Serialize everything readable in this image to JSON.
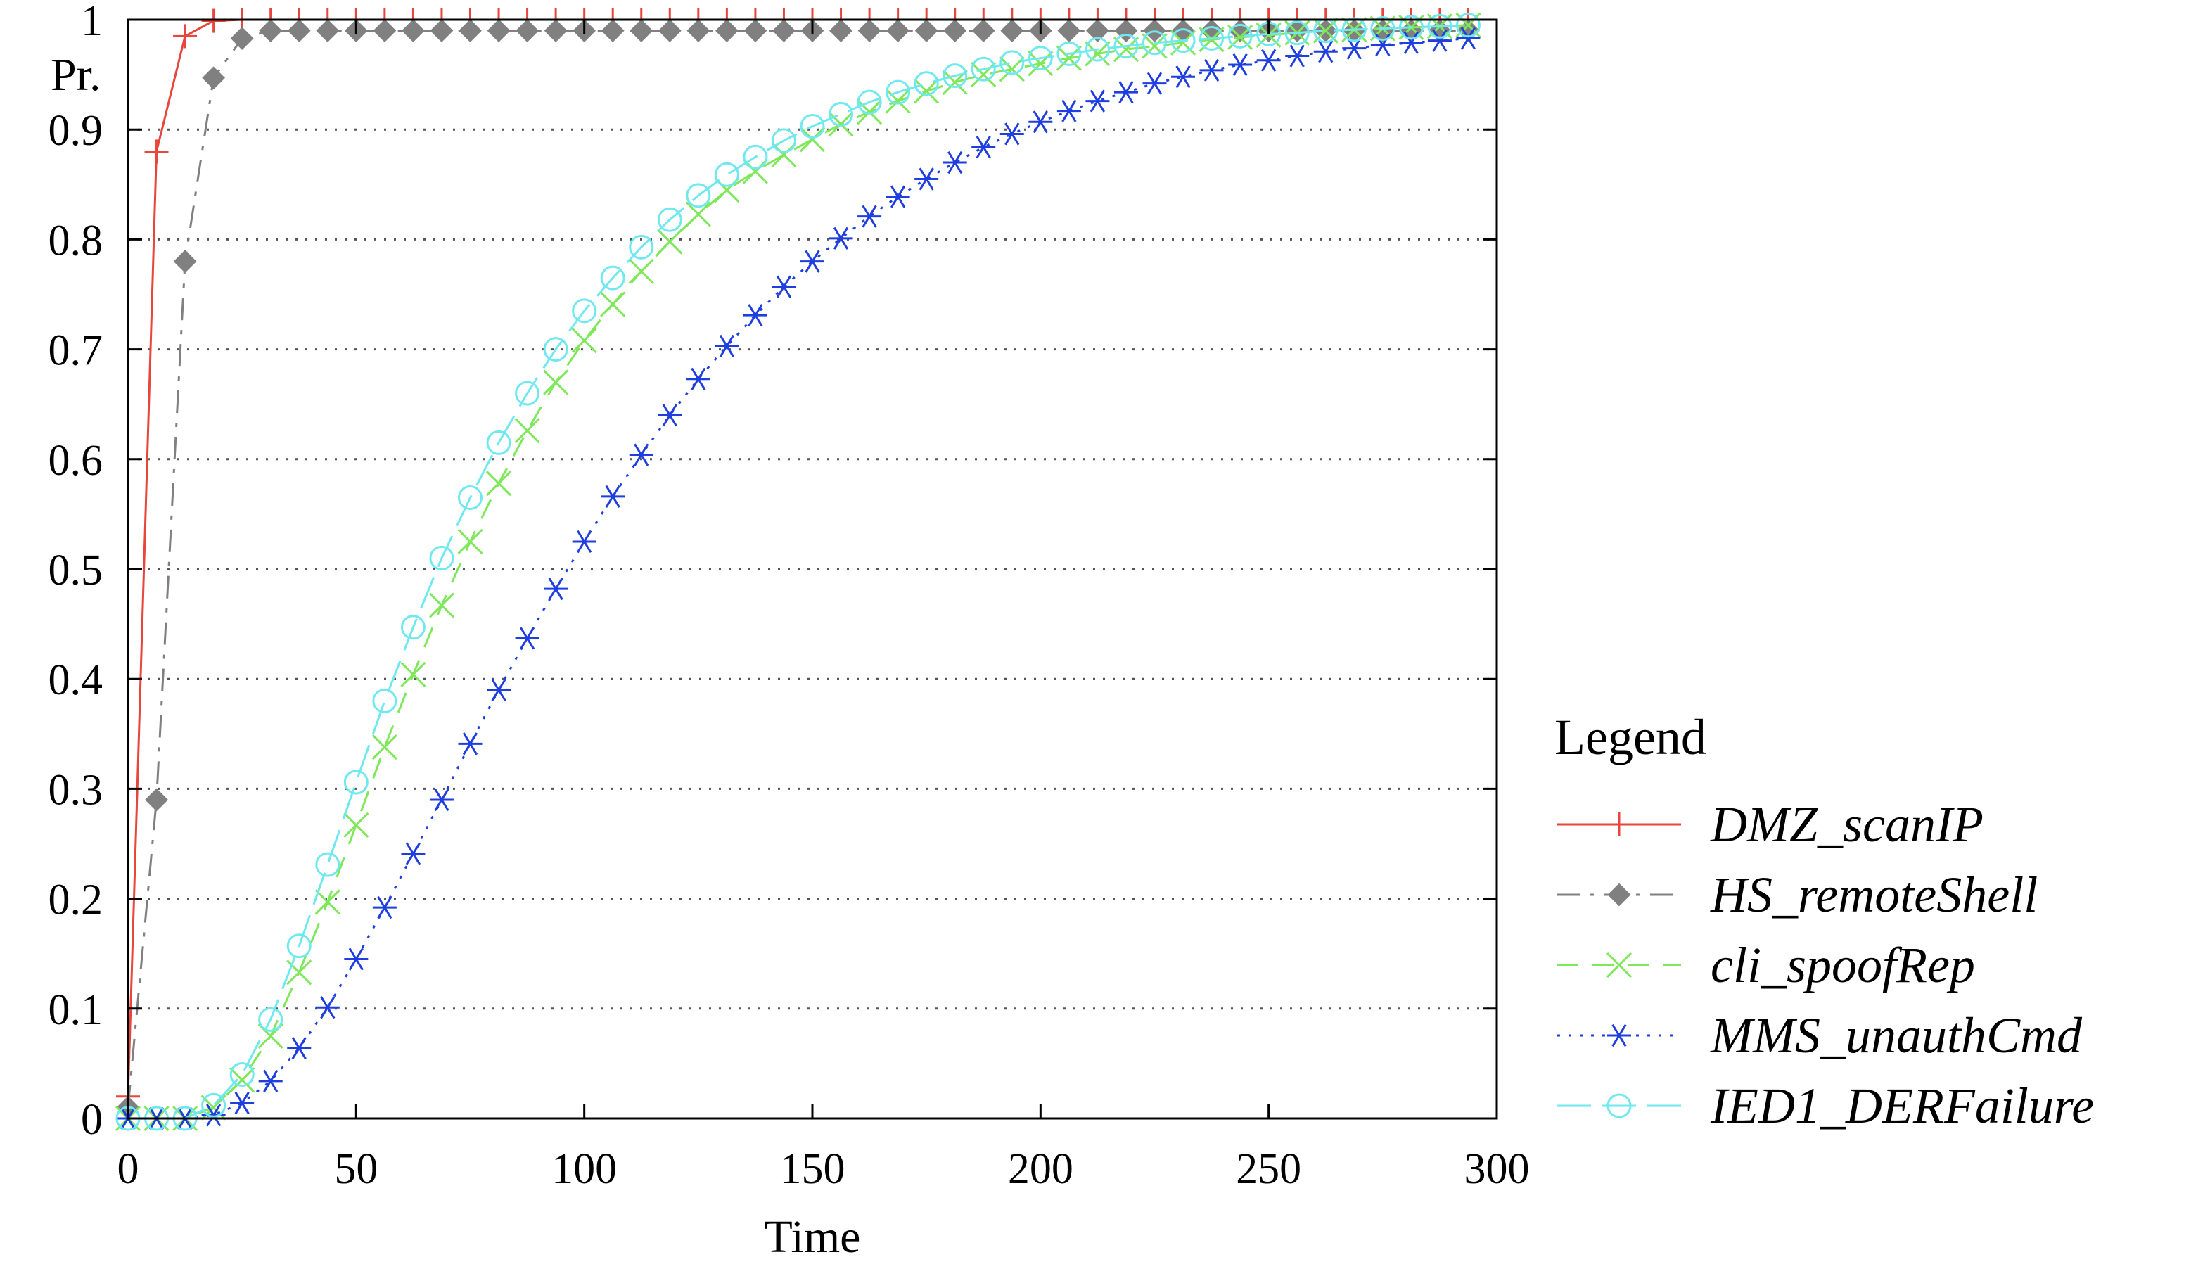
{
  "chart_data": {
    "type": "line",
    "title": "",
    "xlabel": "Time",
    "ylabel": "Pr.",
    "xlim": [
      0,
      300
    ],
    "ylim": [
      0,
      1
    ],
    "xticks": [
      "0",
      "50",
      "100",
      "150",
      "200",
      "250",
      "300"
    ],
    "yticks": [
      "0",
      "0.1",
      "0.2",
      "0.3",
      "0.4",
      "0.5",
      "0.6",
      "0.7",
      "0.8",
      "0.9",
      "1"
    ],
    "grid": true,
    "legend_title": "Legend",
    "legend_position": "right",
    "series": [
      {
        "name": "DMZ_scanIP",
        "color": "#e8453c",
        "marker": "plus",
        "dash": "solid",
        "points": [
          [
            0,
            0.02
          ],
          [
            6.25,
            0.88
          ],
          [
            12.5,
            0.985
          ],
          [
            18.75,
            0.999
          ],
          [
            25,
            1
          ],
          [
            31.25,
            1
          ],
          [
            37.5,
            1
          ],
          [
            43.75,
            1
          ],
          [
            50,
            1
          ],
          [
            56.25,
            1
          ],
          [
            62.5,
            1
          ],
          [
            68.75,
            1
          ],
          [
            75,
            1
          ],
          [
            81.25,
            1
          ],
          [
            87.5,
            1
          ],
          [
            93.75,
            1
          ],
          [
            100,
            1
          ],
          [
            106.25,
            1
          ],
          [
            112.5,
            1
          ],
          [
            118.75,
            1
          ],
          [
            125,
            1
          ],
          [
            131.25,
            1
          ],
          [
            137.5,
            1
          ],
          [
            143.75,
            1
          ],
          [
            150,
            1
          ],
          [
            156.25,
            1
          ],
          [
            162.5,
            1
          ],
          [
            168.75,
            1
          ],
          [
            175,
            1
          ],
          [
            181.25,
            1
          ],
          [
            187.5,
            1
          ],
          [
            193.75,
            1
          ],
          [
            200,
            1
          ],
          [
            206.25,
            1
          ],
          [
            212.5,
            1
          ],
          [
            218.75,
            1
          ],
          [
            225,
            1
          ],
          [
            231.25,
            1
          ],
          [
            237.5,
            1
          ],
          [
            243.75,
            1
          ],
          [
            250,
            1
          ],
          [
            256.25,
            1
          ],
          [
            262.5,
            1
          ],
          [
            268.75,
            1
          ],
          [
            275,
            1
          ],
          [
            281.25,
            1
          ],
          [
            287.5,
            1
          ],
          [
            293.75,
            1
          ]
        ]
      },
      {
        "name": "HS_remoteShell",
        "color": "#808080",
        "marker": "diamond",
        "dash": "dashdot",
        "points": [
          [
            0,
            0.01
          ],
          [
            6.25,
            0.29
          ],
          [
            12.5,
            0.78
          ],
          [
            18.75,
            0.947
          ],
          [
            25,
            0.983
          ],
          [
            31.25,
            0.99
          ],
          [
            37.5,
            0.99
          ],
          [
            43.75,
            0.99
          ],
          [
            50,
            0.99
          ],
          [
            56.25,
            0.99
          ],
          [
            62.5,
            0.99
          ],
          [
            68.75,
            0.99
          ],
          [
            75,
            0.99
          ],
          [
            81.25,
            0.99
          ],
          [
            87.5,
            0.99
          ],
          [
            93.75,
            0.99
          ],
          [
            100,
            0.99
          ],
          [
            106.25,
            0.99
          ],
          [
            112.5,
            0.99
          ],
          [
            118.75,
            0.99
          ],
          [
            125,
            0.99
          ],
          [
            131.25,
            0.99
          ],
          [
            137.5,
            0.99
          ],
          [
            143.75,
            0.99
          ],
          [
            150,
            0.99
          ],
          [
            156.25,
            0.99
          ],
          [
            162.5,
            0.99
          ],
          [
            168.75,
            0.99
          ],
          [
            175,
            0.99
          ],
          [
            181.25,
            0.99
          ],
          [
            187.5,
            0.99
          ],
          [
            193.75,
            0.99
          ],
          [
            200,
            0.99
          ],
          [
            206.25,
            0.99
          ],
          [
            212.5,
            0.99
          ],
          [
            218.75,
            0.99
          ],
          [
            225,
            0.99
          ],
          [
            231.25,
            0.99
          ],
          [
            237.5,
            0.99
          ],
          [
            243.75,
            0.99
          ],
          [
            250,
            0.99
          ],
          [
            256.25,
            0.99
          ],
          [
            262.5,
            0.99
          ],
          [
            268.75,
            0.99
          ],
          [
            275,
            0.99
          ],
          [
            281.25,
            0.99
          ],
          [
            287.5,
            0.99
          ],
          [
            293.75,
            0.99
          ]
        ]
      },
      {
        "name": "cli_spoofRep",
        "color": "#7ee85a",
        "marker": "x",
        "dash": "dashed",
        "points": [
          [
            0,
            0
          ],
          [
            6.25,
            0
          ],
          [
            12.5,
            0
          ],
          [
            18.75,
            0.01
          ],
          [
            25,
            0.035
          ],
          [
            31.25,
            0.075
          ],
          [
            37.5,
            0.133
          ],
          [
            43.75,
            0.197
          ],
          [
            50,
            0.267
          ],
          [
            56.25,
            0.338
          ],
          [
            62.5,
            0.404
          ],
          [
            68.75,
            0.467
          ],
          [
            75,
            0.525
          ],
          [
            81.25,
            0.578
          ],
          [
            87.5,
            0.626
          ],
          [
            93.75,
            0.67
          ],
          [
            100,
            0.708
          ],
          [
            106.25,
            0.741
          ],
          [
            112.5,
            0.771
          ],
          [
            118.75,
            0.798
          ],
          [
            125,
            0.823
          ],
          [
            131.25,
            0.845
          ],
          [
            137.5,
            0.862
          ],
          [
            143.75,
            0.877
          ],
          [
            150,
            0.891
          ],
          [
            156.25,
            0.905
          ],
          [
            162.5,
            0.916
          ],
          [
            168.75,
            0.926
          ],
          [
            175,
            0.935
          ],
          [
            181.25,
            0.943
          ],
          [
            187.5,
            0.95
          ],
          [
            193.75,
            0.955
          ],
          [
            200,
            0.96
          ],
          [
            206.25,
            0.965
          ],
          [
            212.5,
            0.969
          ],
          [
            218.75,
            0.973
          ],
          [
            225,
            0.976
          ],
          [
            231.25,
            0.979
          ],
          [
            237.5,
            0.982
          ],
          [
            243.75,
            0.984
          ],
          [
            250,
            0.986
          ],
          [
            256.25,
            0.988
          ],
          [
            262.5,
            0.99
          ],
          [
            268.75,
            0.991
          ],
          [
            275,
            0.992
          ],
          [
            281.25,
            0.993
          ],
          [
            287.5,
            0.994
          ],
          [
            293.75,
            0.995
          ]
        ]
      },
      {
        "name": "MMS_unauthCmd",
        "color": "#1f3ee0",
        "marker": "asterisk",
        "dash": "dotted",
        "points": [
          [
            0,
            0
          ],
          [
            6.25,
            0
          ],
          [
            12.5,
            0
          ],
          [
            18.75,
            0.003
          ],
          [
            25,
            0.014
          ],
          [
            31.25,
            0.034
          ],
          [
            37.5,
            0.064
          ],
          [
            43.75,
            0.101
          ],
          [
            50,
            0.145
          ],
          [
            56.25,
            0.192
          ],
          [
            62.5,
            0.241
          ],
          [
            68.75,
            0.29
          ],
          [
            75,
            0.341
          ],
          [
            81.25,
            0.39
          ],
          [
            87.5,
            0.437
          ],
          [
            93.75,
            0.482
          ],
          [
            100,
            0.525
          ],
          [
            106.25,
            0.566
          ],
          [
            112.5,
            0.604
          ],
          [
            118.75,
            0.64
          ],
          [
            125,
            0.673
          ],
          [
            131.25,
            0.703
          ],
          [
            137.5,
            0.731
          ],
          [
            143.75,
            0.757
          ],
          [
            150,
            0.78
          ],
          [
            156.25,
            0.801
          ],
          [
            162.5,
            0.821
          ],
          [
            168.75,
            0.839
          ],
          [
            175,
            0.855
          ],
          [
            181.25,
            0.87
          ],
          [
            187.5,
            0.884
          ],
          [
            193.75,
            0.896
          ],
          [
            200,
            0.907
          ],
          [
            206.25,
            0.917
          ],
          [
            212.5,
            0.926
          ],
          [
            218.75,
            0.934
          ],
          [
            225,
            0.942
          ],
          [
            231.25,
            0.948
          ],
          [
            237.5,
            0.954
          ],
          [
            243.75,
            0.959
          ],
          [
            250,
            0.963
          ],
          [
            256.25,
            0.967
          ],
          [
            262.5,
            0.971
          ],
          [
            268.75,
            0.974
          ],
          [
            275,
            0.977
          ],
          [
            281.25,
            0.979
          ],
          [
            287.5,
            0.981
          ],
          [
            293.75,
            0.983
          ]
        ]
      },
      {
        "name": "IED1_DERFailure",
        "color": "#6fe8f0",
        "marker": "circle",
        "dash": "longdash",
        "points": [
          [
            0,
            0
          ],
          [
            6.25,
            0
          ],
          [
            12.5,
            0
          ],
          [
            18.75,
            0.012
          ],
          [
            25,
            0.04
          ],
          [
            31.25,
            0.09
          ],
          [
            37.5,
            0.157
          ],
          [
            43.75,
            0.231
          ],
          [
            50,
            0.306
          ],
          [
            56.25,
            0.38
          ],
          [
            62.5,
            0.447
          ],
          [
            68.75,
            0.51
          ],
          [
            75,
            0.565
          ],
          [
            81.25,
            0.615
          ],
          [
            87.5,
            0.66
          ],
          [
            93.75,
            0.7
          ],
          [
            100,
            0.735
          ],
          [
            106.25,
            0.765
          ],
          [
            112.5,
            0.793
          ],
          [
            118.75,
            0.818
          ],
          [
            125,
            0.84
          ],
          [
            131.25,
            0.859
          ],
          [
            137.5,
            0.875
          ],
          [
            143.75,
            0.89
          ],
          [
            150,
            0.903
          ],
          [
            156.25,
            0.914
          ],
          [
            162.5,
            0.925
          ],
          [
            168.75,
            0.934
          ],
          [
            175,
            0.942
          ],
          [
            181.25,
            0.949
          ],
          [
            187.5,
            0.955
          ],
          [
            193.75,
            0.961
          ],
          [
            200,
            0.965
          ],
          [
            206.25,
            0.969
          ],
          [
            212.5,
            0.973
          ],
          [
            218.75,
            0.976
          ],
          [
            225,
            0.979
          ],
          [
            231.25,
            0.981
          ],
          [
            237.5,
            0.983
          ],
          [
            243.75,
            0.985
          ],
          [
            250,
            0.987
          ],
          [
            256.25,
            0.988
          ],
          [
            262.5,
            0.99
          ],
          [
            268.75,
            0.991
          ],
          [
            275,
            0.992
          ],
          [
            281.25,
            0.993
          ],
          [
            287.5,
            0.994
          ],
          [
            293.75,
            0.995
          ]
        ]
      }
    ]
  }
}
